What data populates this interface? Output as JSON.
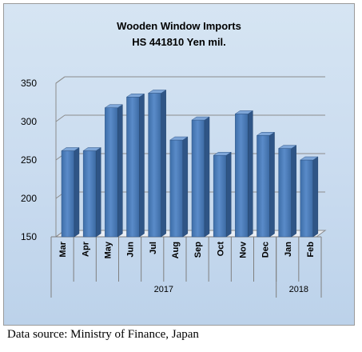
{
  "chart_data": {
    "type": "bar",
    "title_lines": [
      "Wooden Window Imports",
      "HS 441810 Yen mil."
    ],
    "categories": [
      "Mar",
      "Apr",
      "May",
      "Jun",
      "Jul",
      "Aug",
      "Sep",
      "Oct",
      "Nov",
      "Dec",
      "Jan",
      "Feb"
    ],
    "values": [
      262,
      262,
      318,
      332,
      337,
      276,
      302,
      256,
      310,
      282,
      265,
      250
    ],
    "ylim": [
      150,
      350
    ],
    "yticks": [
      150,
      200,
      250,
      300,
      350
    ],
    "year_groups": [
      {
        "label": "2017",
        "count": 10
      },
      {
        "label": "2018",
        "count": 2
      }
    ],
    "grid": true,
    "bar_color": "#4f81bd"
  },
  "source_note": "Data source: Ministry of Finance, Japan"
}
